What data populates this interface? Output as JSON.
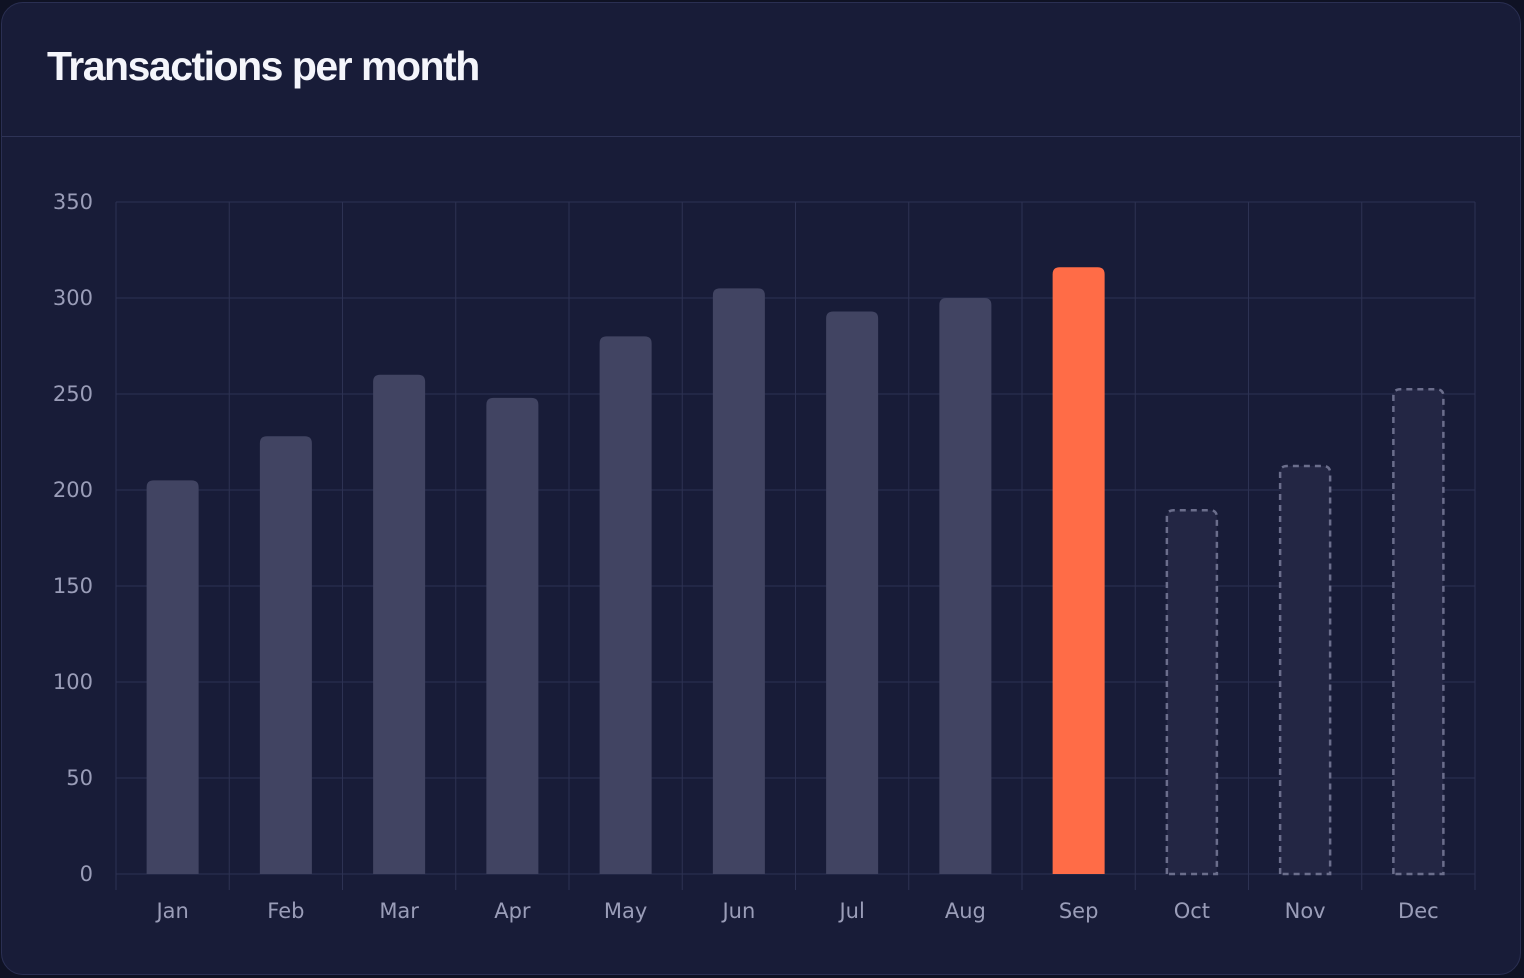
{
  "card": {
    "title": "Transactions per month"
  },
  "colors": {
    "background": "#181c38",
    "grid": "#2d3253",
    "bar_actual": "#414462",
    "bar_highlight": "#ff6c47",
    "bar_forecast_fill": "#232644",
    "bar_forecast_stroke": "#6b6e8c",
    "tick_label": "#9a9db8"
  },
  "chart_data": {
    "type": "bar",
    "title": "Transactions per month",
    "xlabel": "",
    "ylabel": "",
    "categories": [
      "Jan",
      "Feb",
      "Mar",
      "Apr",
      "May",
      "Jun",
      "Jul",
      "Aug",
      "Sep",
      "Oct",
      "Nov",
      "Dec"
    ],
    "values": [
      205,
      228,
      260,
      248,
      280,
      305,
      293,
      300,
      316,
      190,
      213,
      253
    ],
    "bar_style": [
      "actual",
      "actual",
      "actual",
      "actual",
      "actual",
      "actual",
      "actual",
      "actual",
      "highlight",
      "forecast",
      "forecast",
      "forecast"
    ],
    "ylim": [
      0,
      350
    ],
    "yticks": [
      0,
      50,
      100,
      150,
      200,
      250,
      300,
      350
    ],
    "grid": true,
    "legend": "none"
  }
}
